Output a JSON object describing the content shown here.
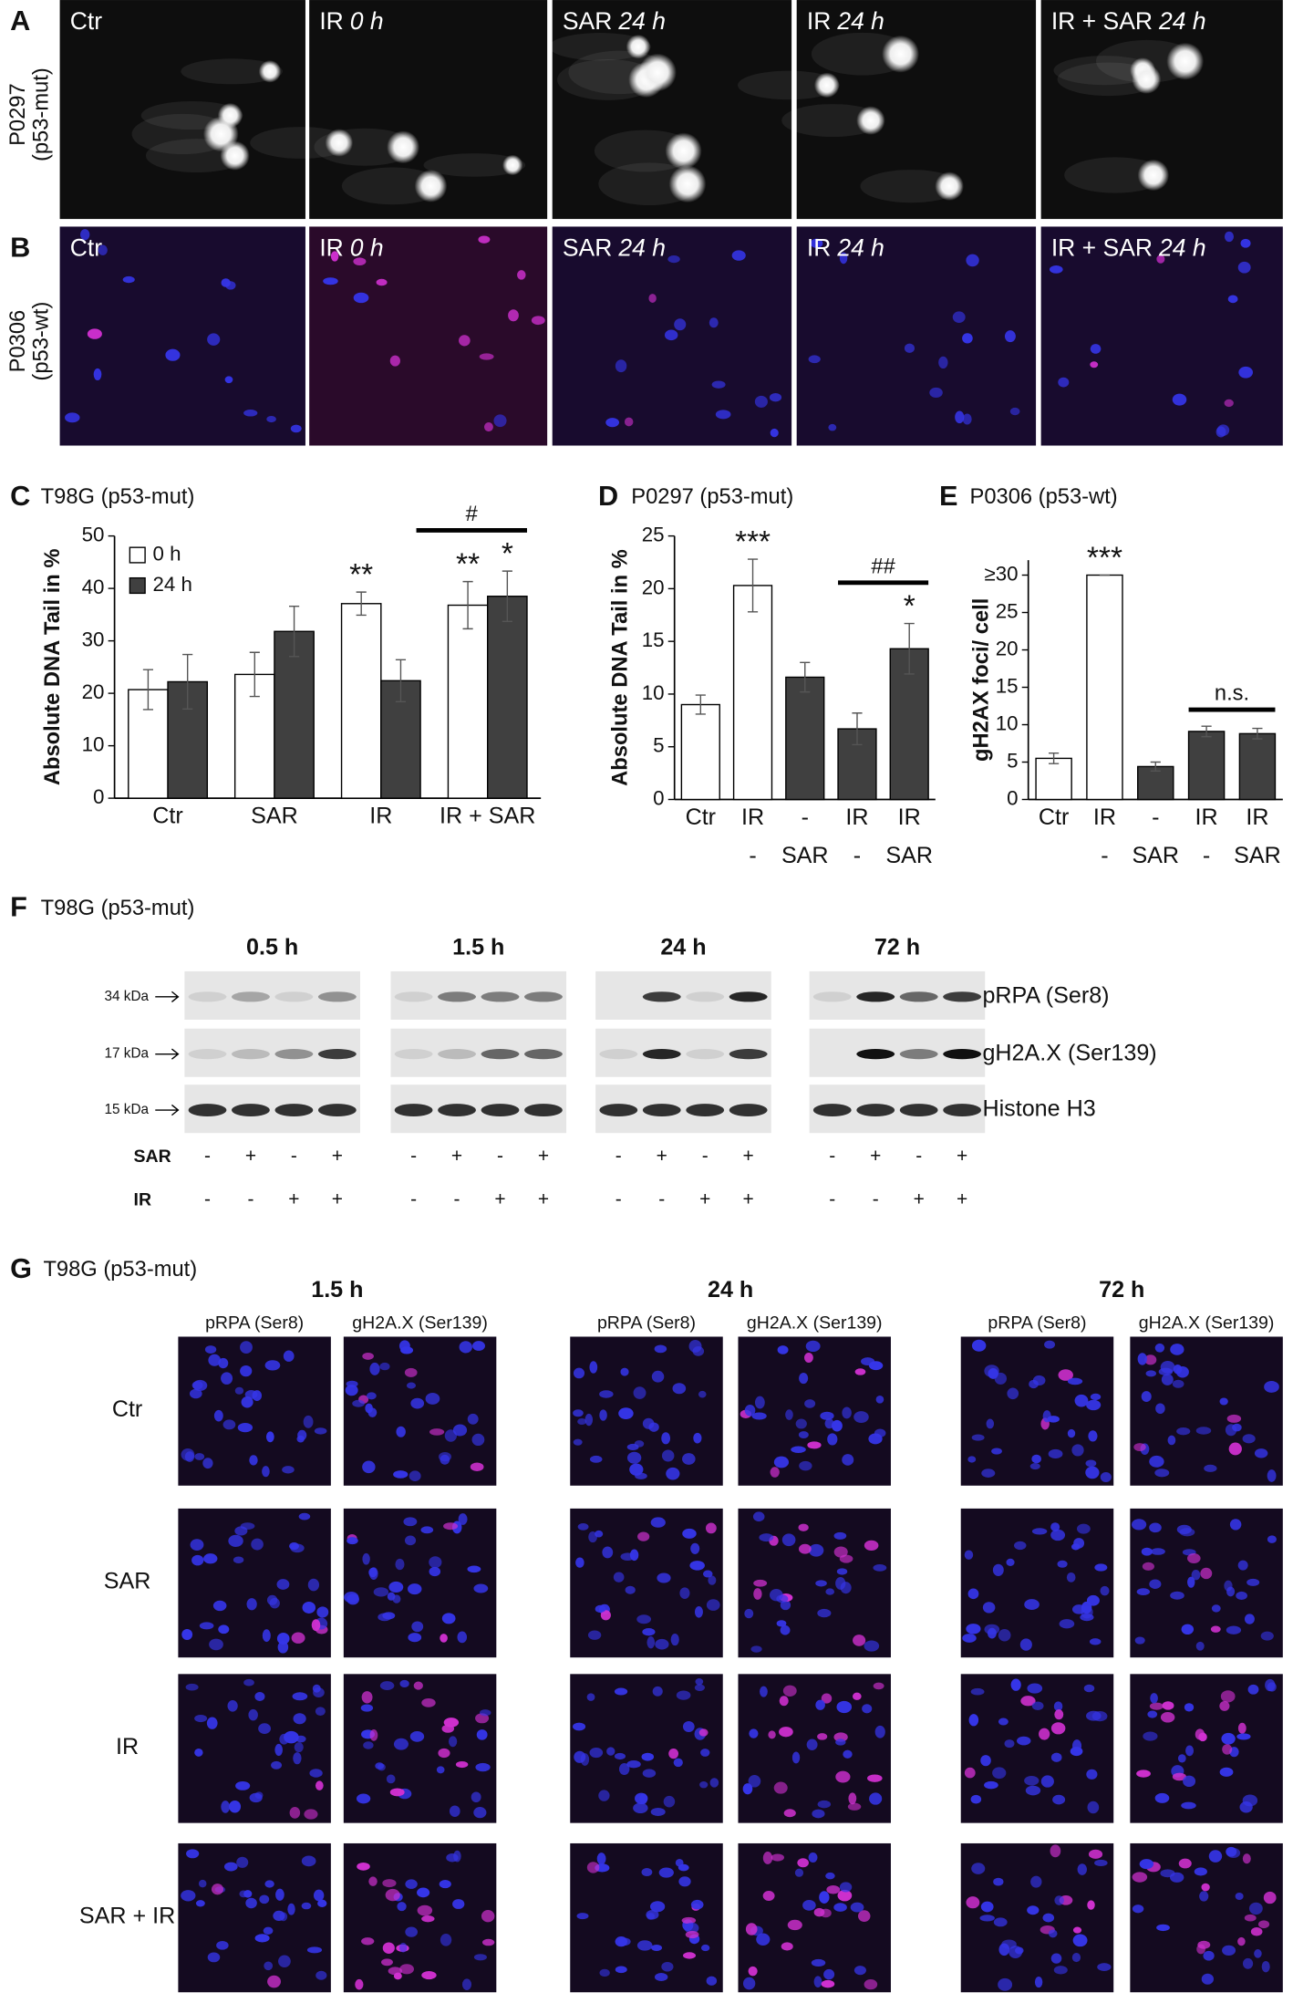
{
  "panel_a": {
    "letter": "A",
    "sample": "P0297",
    "genotype": "(p53-mut)",
    "conditions": [
      {
        "treatment": "Ctr"
      },
      {
        "treatment": "IR",
        "time": "0 h"
      },
      {
        "treatment": "SAR",
        "time": "24 h"
      },
      {
        "treatment": "IR",
        "time": "24 h"
      },
      {
        "treatment": "IR + SAR",
        "time": "24 h"
      }
    ]
  },
  "panel_b": {
    "letter": "B",
    "sample": "P0306",
    "genotype": "(p53-wt)",
    "conditions": [
      {
        "treatment": "Ctr"
      },
      {
        "treatment": "IR",
        "time": "0 h"
      },
      {
        "treatment": "SAR",
        "time": "24 h"
      },
      {
        "treatment": "IR",
        "time": "24 h"
      },
      {
        "treatment": "IR + SAR",
        "time": "24 h"
      }
    ]
  },
  "chart_data": [
    {
      "type": "bar",
      "letter": "C",
      "title": "T98G (p53-mut)",
      "y_label": "Absolute DNA Tail in %",
      "categories": [
        "Ctr",
        "SAR",
        "IR",
        "IR + SAR"
      ],
      "series": [
        {
          "name": "0 h",
          "color": "#ffffff",
          "values": [
            20.7,
            23.6,
            37.1,
            36.8
          ],
          "errors": [
            3.8,
            4.2,
            2.2,
            4.5
          ]
        },
        {
          "name": "24 h",
          "color": "#404040",
          "values": [
            22.2,
            31.8,
            22.4,
            38.5
          ],
          "errors": [
            5.2,
            4.8,
            4.0,
            4.8
          ]
        }
      ],
      "ylim": [
        0,
        50
      ],
      "yticks": [
        0,
        10,
        20,
        30,
        40,
        50
      ],
      "legend": "upper left",
      "annotations": [
        {
          "text": "**",
          "series": 0,
          "category": 2
        },
        {
          "text": "**",
          "series": 0,
          "category": 3
        },
        {
          "text": "*",
          "series": 1,
          "category": 3
        }
      ],
      "brackets": [
        {
          "text": "#",
          "category": 3
        }
      ]
    },
    {
      "type": "bar",
      "letter": "D",
      "title": "P0297 (p53-mut)",
      "y_label": "Absolute DNA Tail in %",
      "categories": [
        [
          "Ctr"
        ],
        [
          "IR",
          "-"
        ],
        [
          "-",
          "SAR"
        ],
        [
          "IR",
          "-"
        ],
        [
          "IR",
          "SAR"
        ]
      ],
      "values": [
        9.0,
        20.3,
        11.6,
        6.7,
        14.3
      ],
      "errors": [
        0.9,
        2.5,
        1.4,
        1.5,
        2.4
      ],
      "colors": [
        "#ffffff",
        "#ffffff",
        "#404040",
        "#404040",
        "#404040"
      ],
      "ylim": [
        0,
        25
      ],
      "yticks": [
        0,
        5,
        10,
        15,
        20,
        25
      ],
      "annotations": [
        {
          "text": "***",
          "bar": 1
        },
        {
          "text": "*",
          "bar": 4
        }
      ],
      "brackets": [
        {
          "text": "##",
          "bars": [
            3,
            4
          ]
        }
      ]
    },
    {
      "type": "bar",
      "letter": "E",
      "title": "P0306 (p53-wt)",
      "y_label": "gH2AX foci/ cell",
      "categories": [
        [
          "Ctr"
        ],
        [
          "IR",
          "-"
        ],
        [
          "-",
          "SAR"
        ],
        [
          "IR",
          "-"
        ],
        [
          "IR",
          "SAR"
        ]
      ],
      "values": [
        5.5,
        30,
        4.4,
        9.1,
        8.8
      ],
      "errors": [
        0.7,
        0,
        0.6,
        0.7,
        0.7
      ],
      "colors": [
        "#ffffff",
        "#ffffff",
        "#404040",
        "#404040",
        "#404040"
      ],
      "ylim": [
        0,
        32
      ],
      "yticks": [
        0,
        5,
        10,
        15,
        20,
        25,
        {
          "value": 30,
          "label": "≥30"
        }
      ],
      "annotations": [
        {
          "text": "***",
          "bar": 1
        }
      ],
      "brackets": [
        {
          "text": "n.s.",
          "bars": [
            3,
            4
          ]
        }
      ]
    }
  ],
  "panel_f": {
    "letter": "F",
    "title": "T98G (p53-mut)",
    "times": [
      "0.5 h",
      "1.5 h",
      "24 h",
      "72 h"
    ],
    "markers": [
      "34 kDa",
      "17 kDa",
      "15 kDa"
    ],
    "proteins": [
      "pRPA (Ser8)",
      "gH2A.X (Ser139)",
      "Histone H3"
    ],
    "treatments": [
      {
        "name": "SAR",
        "signs": [
          "-",
          "+",
          "-",
          "+",
          "-",
          "+",
          "-",
          "+",
          "-",
          "+",
          "-",
          "+",
          "-",
          "+",
          "-",
          "+"
        ]
      },
      {
        "name": "IR",
        "signs": [
          "-",
          "-",
          "+",
          "+",
          "-",
          "-",
          "+",
          "+",
          "-",
          "-",
          "+",
          "+",
          "-",
          "-",
          "+",
          "+"
        ]
      }
    ]
  },
  "panel_g": {
    "letter": "G",
    "title": "T98G (p53-mut)",
    "times": [
      "1.5 h",
      "24 h",
      "72 h"
    ],
    "stains": [
      "pRPA (Ser8)",
      "gH2A.X (Ser139)"
    ],
    "conditions": [
      "Ctr",
      "SAR",
      "IR",
      "SAR + IR"
    ]
  }
}
